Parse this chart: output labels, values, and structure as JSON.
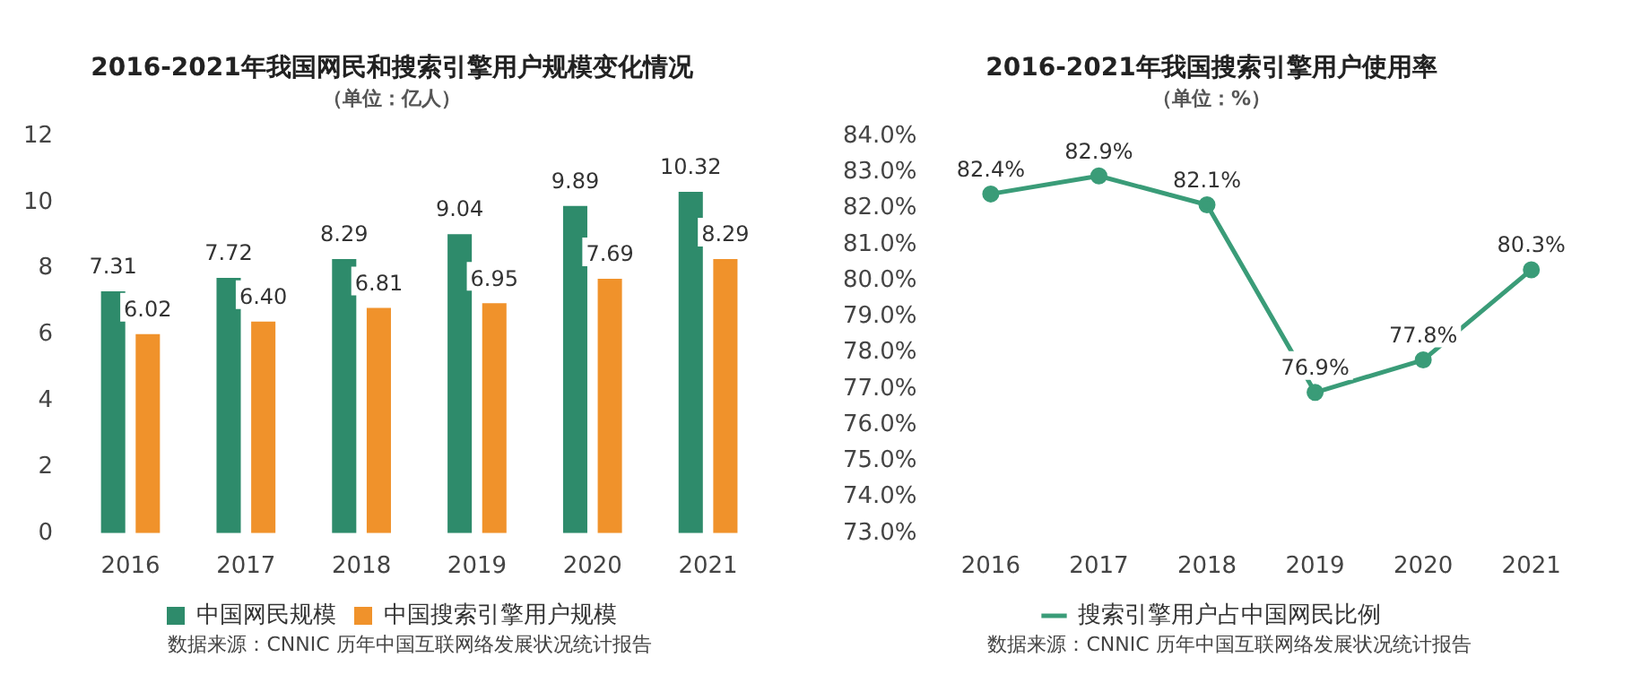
{
  "chart_data": [
    {
      "type": "bar",
      "title": "2016-2021年我国网民和搜索引擎用户规模变化情况",
      "subtitle": "（单位：亿人）",
      "categories": [
        "2016",
        "2017",
        "2018",
        "2019",
        "2020",
        "2021"
      ],
      "series": [
        {
          "name": "中国网民规模",
          "color": "#2e8b6b",
          "values": [
            7.31,
            7.72,
            8.29,
            9.04,
            9.89,
            10.32
          ],
          "value_labels": [
            "7.31",
            "7.72",
            "8.29",
            "9.04",
            "9.89",
            "10.32"
          ]
        },
        {
          "name": "中国搜索引擎用户规模",
          "color": "#f0922b",
          "values": [
            6.02,
            6.4,
            6.81,
            6.95,
            7.69,
            8.29
          ],
          "value_labels": [
            "6.02",
            "6.40",
            "6.81",
            "6.95",
            "7.69",
            "8.29"
          ]
        }
      ],
      "ylim": [
        0,
        12
      ],
      "yticks": [
        0,
        2,
        4,
        6,
        8,
        10,
        12
      ],
      "legend": "bottom",
      "annotations": [
        "数据来源：CNNIC 历年中国互联网络发展状况统计报告"
      ]
    },
    {
      "type": "line",
      "title": "2016-2021年我国搜索引擎用户使用率",
      "subtitle": "（单位：%）",
      "categories": [
        "2016",
        "2017",
        "2018",
        "2019",
        "2020",
        "2021"
      ],
      "series": [
        {
          "name": "搜索引擎用户占中国网民比例",
          "color": "#3a9c78",
          "values": [
            82.4,
            82.9,
            82.1,
            76.9,
            77.8,
            80.3
          ],
          "value_labels": [
            "82.4%",
            "82.9%",
            "82.1%",
            "76.9%",
            "77.8%",
            "80.3%"
          ]
        }
      ],
      "ylim": [
        73,
        84
      ],
      "yticks": [
        {
          "value": 73,
          "label": "73.0%"
        },
        {
          "value": 74,
          "label": "74.0%"
        },
        {
          "value": 75,
          "label": "75.0%"
        },
        {
          "value": 76,
          "label": "76.0%"
        },
        {
          "value": 77,
          "label": "77.0%"
        },
        {
          "value": 78,
          "label": "78.0%"
        },
        {
          "value": 79,
          "label": "79.0%"
        },
        {
          "value": 80,
          "label": "80.0%"
        },
        {
          "value": 81,
          "label": "81.0%"
        },
        {
          "value": 82,
          "label": "82.0%"
        },
        {
          "value": 83,
          "label": "83.0%"
        },
        {
          "value": 84,
          "label": "84.0%"
        }
      ],
      "marker": "circle",
      "legend": "bottom",
      "annotations": [
        "数据来源：CNNIC 历年中国互联网络发展状况统计报告"
      ]
    }
  ]
}
